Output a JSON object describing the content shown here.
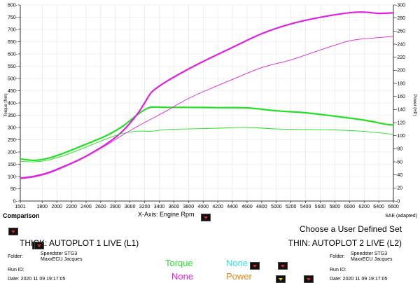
{
  "chart_data": {
    "type": "line",
    "xlabel_prefix": "X-Axis:",
    "xlabel": "Engine Rpm",
    "y_left_label": "Torque (Nm)",
    "y_right_label": "Power (HP)",
    "xlim": [
      1501,
      6600
    ],
    "ylim_left": [
      0,
      800
    ],
    "ylim_right": [
      0,
      300
    ],
    "x_ticks": [
      1501,
      1800,
      2000,
      2200,
      2400,
      2600,
      2800,
      3000,
      3200,
      3400,
      3600,
      3800,
      4000,
      4200,
      4400,
      4600,
      4800,
      5000,
      5200,
      5400,
      5600,
      5800,
      6000,
      6200,
      6400,
      6600
    ],
    "y_left_ticks": [
      0,
      50,
      100,
      150,
      200,
      250,
      300,
      350,
      400,
      450,
      500,
      550,
      600,
      650,
      700,
      750,
      800
    ],
    "y_right_ticks": [
      0,
      20,
      40,
      60,
      80,
      100,
      120,
      140,
      160,
      180,
      200,
      220,
      240,
      260,
      280,
      300
    ],
    "grid": true,
    "series": [
      {
        "name": "Torque",
        "run": "L1",
        "axis": "left",
        "weight": "thick",
        "color": "#22e022",
        "x": [
          1501,
          1700,
          1900,
          2100,
          2300,
          2500,
          2700,
          2900,
          3100,
          3200,
          3300,
          3500,
          3800,
          4200,
          4600,
          5000,
          5400,
          5800,
          6200,
          6500,
          6600
        ],
        "y": [
          172,
          166,
          176,
          196,
          220,
          244,
          270,
          305,
          352,
          372,
          383,
          382,
          382,
          381,
          380,
          368,
          360,
          346,
          330,
          313,
          310
        ]
      },
      {
        "name": "Power",
        "run": "L1",
        "axis": "right",
        "weight": "thick",
        "color": "#e020e0",
        "x": [
          1501,
          1700,
          1900,
          2100,
          2300,
          2500,
          2700,
          2900,
          3100,
          3200,
          3300,
          3500,
          3800,
          4100,
          4400,
          4800,
          5200,
          5600,
          6000,
          6200,
          6400,
          6600
        ],
        "y": [
          35,
          38,
          44,
          53,
          63,
          75,
          89,
          107,
          133,
          150,
          167,
          183,
          202,
          219,
          235,
          256,
          271,
          281,
          288,
          289,
          287,
          288
        ]
      },
      {
        "name": "Torque",
        "run": "L2",
        "axis": "left",
        "weight": "thin",
        "color": "#22e022",
        "x": [
          1501,
          1700,
          1900,
          2100,
          2300,
          2500,
          2700,
          2900,
          3100,
          3300,
          3500,
          3800,
          4200,
          4600,
          5000,
          5400,
          5800,
          6200,
          6600
        ],
        "y": [
          162,
          160,
          168,
          186,
          208,
          232,
          256,
          276,
          285,
          285,
          292,
          294,
          297,
          300,
          294,
          292,
          290,
          284,
          272
        ]
      },
      {
        "name": "Power",
        "run": "L2",
        "axis": "right",
        "weight": "thin",
        "color": "#e020e0",
        "x": [
          1501,
          1700,
          1900,
          2100,
          2300,
          2500,
          2700,
          2900,
          3100,
          3300,
          3500,
          3800,
          4100,
          4400,
          4800,
          5200,
          5600,
          6000,
          6300,
          6600
        ],
        "y": [
          34,
          37,
          43,
          52,
          62,
          74,
          87,
          101,
          114,
          126,
          138,
          157,
          172,
          186,
          204,
          216,
          231,
          245,
          249,
          252
        ]
      }
    ]
  },
  "panel": {
    "comparison": "Comparison",
    "standard": "SAE (adapted)",
    "user_set": "Choose a User Defined Set",
    "thick_label": "THICK: AUTOPLOT 1 LIVE (L1)",
    "thin_label": "THIN: AUTOPLOT 2 LIVE (L2)",
    "left": {
      "folder_label": "Folder:",
      "folder_line1": "Speedster STG3",
      "folder_line2": "MaxxECU Jacques",
      "runid_label": "Run ID:",
      "date_text": "Date: 2020 11 09 19:17:05"
    },
    "right": {
      "folder_label": "Folder:",
      "folder_line1": "Speedster STG3",
      "folder_line2": "MaxxECU Jacques",
      "runid_label": "Run ID:",
      "date_text": "Date: 2020 11 09 19:17:05"
    },
    "selector": {
      "slot1": "Torque",
      "slot2": "None",
      "slot3": "None",
      "slot4": "Power",
      "color1": "#2be02b",
      "color2": "#2adede",
      "color3": "#e020e0",
      "color4": "#e08a1a"
    }
  }
}
